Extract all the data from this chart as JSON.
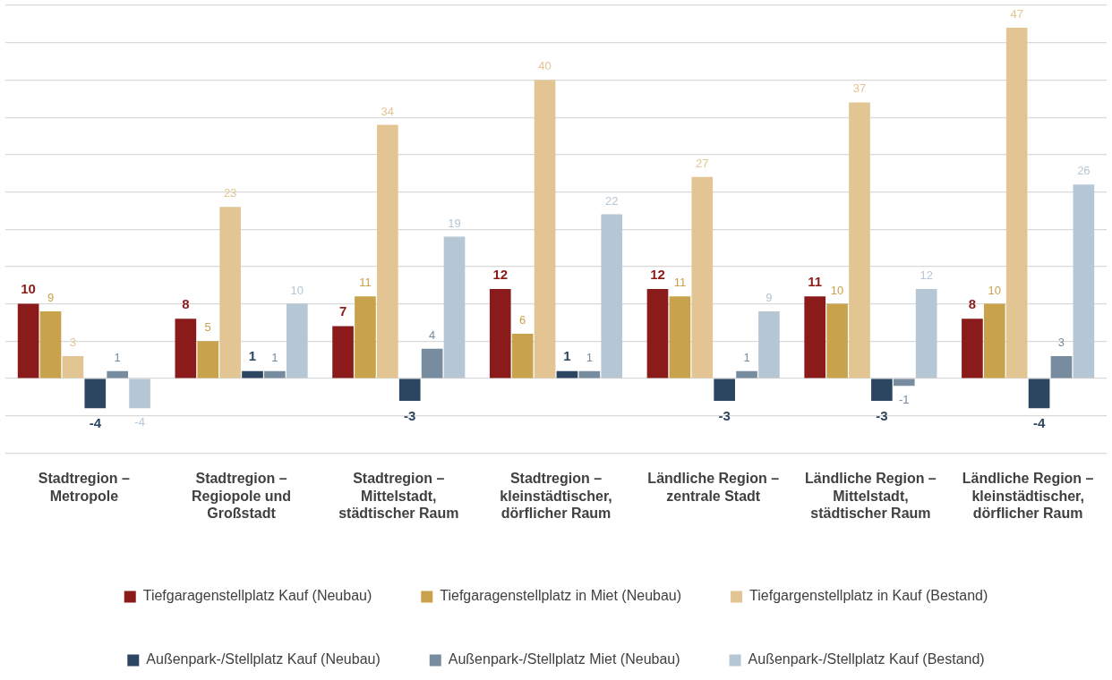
{
  "chart_data": {
    "type": "bar",
    "categories": [
      "Stadtregion – Metropole",
      "Stadtregion – Regiopole und Großstadt",
      "Stadtregion – Mittelstadt, städtischer Raum",
      "Stadtregion – kleinstädtischer, dörflicher Raum",
      "Ländliche Region – zentrale Stadt",
      "Ländliche Region – Mittelstadt, städtischer Raum",
      "Ländliche Region – kleinstädtischer, dörflicher Raum"
    ],
    "series": [
      {
        "name": "Tiefgaragenstellplatz Kauf (Neubau)",
        "color": "#8b1a1a",
        "values": [
          10,
          8,
          7,
          12,
          12,
          11,
          8
        ]
      },
      {
        "name": "Tiefgaragenstellplatz in Miet (Neubau)",
        "color": "#c9a24c",
        "values": [
          9,
          5,
          11,
          6,
          11,
          10,
          10
        ]
      },
      {
        "name": "Tiefgargenstellplatz in Kauf (Bestand)",
        "color": "#e2c593",
        "values": [
          3,
          23,
          34,
          40,
          27,
          37,
          47
        ]
      },
      {
        "name": "Außenpark-/Stellplatz Kauf (Neubau)",
        "color": "#2c4560",
        "values": [
          -4,
          1,
          -3,
          1,
          -3,
          -3,
          -4
        ]
      },
      {
        "name": "Außenpark-/Stellplatz Miet (Neubau)",
        "color": "#778c9f",
        "values": [
          1,
          1,
          4,
          1,
          1,
          -1,
          3
        ]
      },
      {
        "name": "Außenpark-/Stellplatz Kauf (Bestand)",
        "color": "#b5c6d4",
        "values": [
          -4,
          10,
          19,
          22,
          9,
          12,
          26
        ]
      }
    ],
    "ylim": [
      -10,
      50
    ],
    "yticks": [
      {
        "value": -10,
        "label": null
      },
      {
        "value": -5,
        "label": null
      },
      {
        "value": 0,
        "label": null
      },
      {
        "value": 5,
        "label": null
      },
      {
        "value": 10,
        "label": null
      },
      {
        "value": 15,
        "label": null
      },
      {
        "value": 20,
        "label": null
      },
      {
        "value": 25,
        "label": null
      },
      {
        "value": 30,
        "label": null
      },
      {
        "value": 35,
        "label": null
      },
      {
        "value": 40,
        "label": null
      },
      {
        "value": 45,
        "label": null
      },
      {
        "value": 50,
        "label": null
      }
    ],
    "grid": "y",
    "tick_labels": "x",
    "legend": "bottom",
    "data_labels": true
  }
}
